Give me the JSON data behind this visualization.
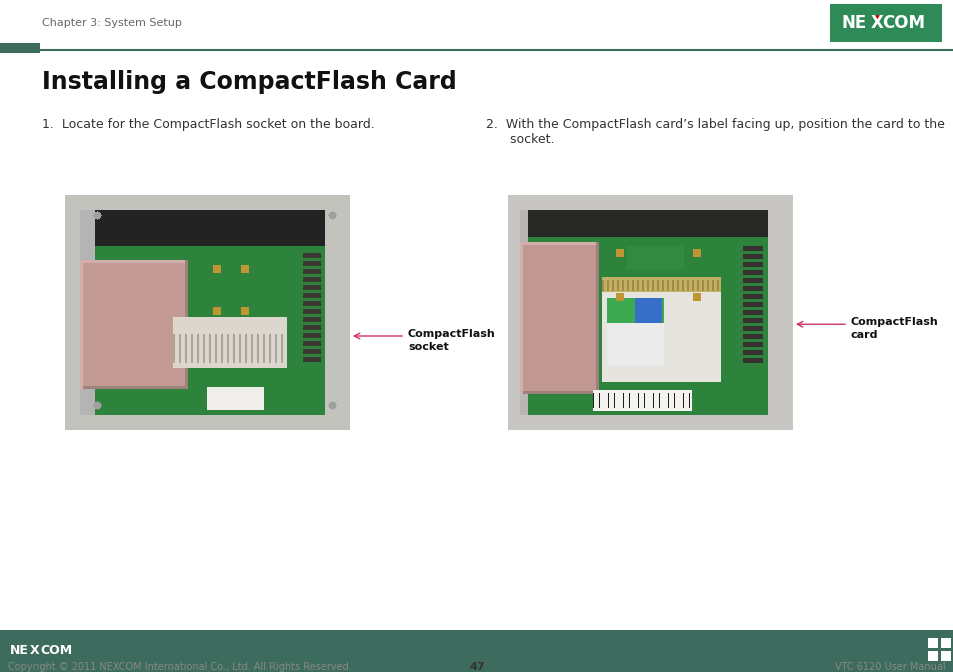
{
  "title": "Installing a CompactFlash Card",
  "chapter_text": "Chapter 3: System Setup",
  "step1_text": "1.  Locate for the CompactFlash socket on the board.",
  "step2_text": "2.  With the CompactFlash card’s label facing up, position the card to the\n      socket.",
  "label1_line1": "CompactFlash",
  "label1_line2": "socket",
  "label2_line1": "CompactFlash",
  "label2_line2": "card",
  "footer_copyright": "Copyright © 2011 NEXCOM International Co., Ltd. All Rights Reserved.",
  "footer_page": "47",
  "footer_right": "VTC 6120 User Manual",
  "bg_color": "#ffffff",
  "header_line_color": "#3d6b5e",
  "header_accent_color": "#3d6b5e",
  "footer_bar_color": "#3d6b5e",
  "title_fontsize": 17,
  "chapter_fontsize": 8,
  "step_fontsize": 9,
  "label_fontsize": 8,
  "footer_fontsize": 7,
  "nexcom_green": "#2e7d5e",
  "arrow_color": "#cc3366"
}
